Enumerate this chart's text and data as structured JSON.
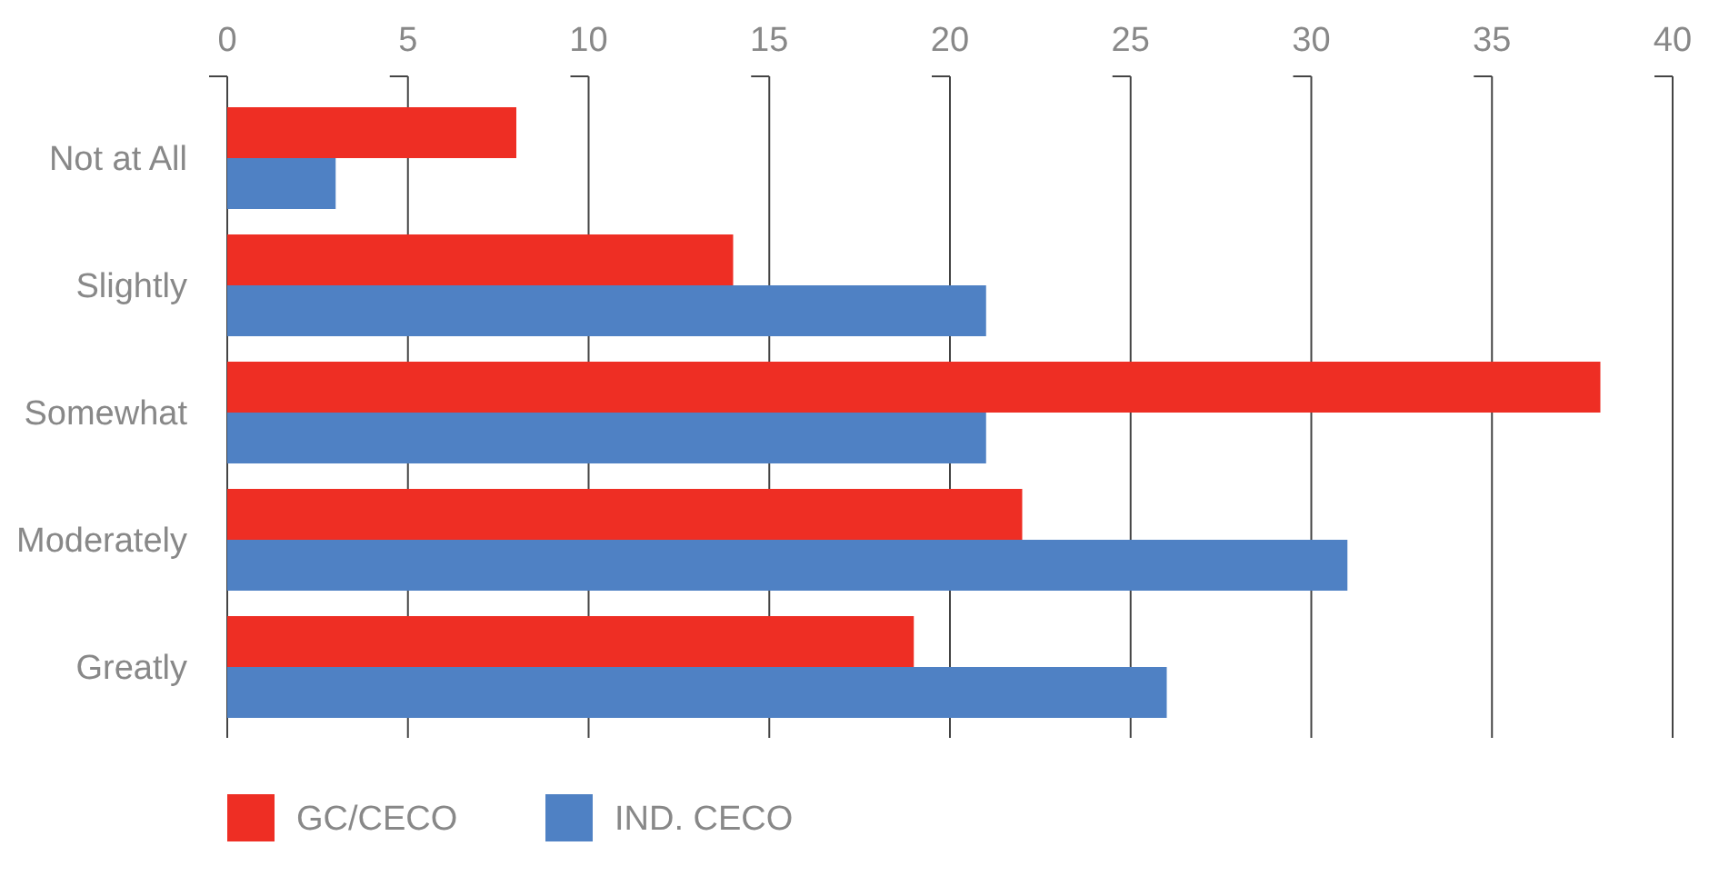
{
  "chart_data": {
    "type": "bar",
    "orientation": "horizontal",
    "categories": [
      "Not at All",
      "Slightly",
      "Somewhat",
      "Moderately",
      "Greatly"
    ],
    "series": [
      {
        "name": "GC/CECO",
        "color": "#ee2e24",
        "values": [
          8,
          14,
          38,
          22,
          19
        ]
      },
      {
        "name": "IND. CECO",
        "color": "#4f81c4",
        "values": [
          3,
          21,
          21,
          31,
          26
        ]
      }
    ],
    "xlim": [
      0,
      40
    ],
    "xticks": [
      0,
      5,
      10,
      15,
      20,
      25,
      30,
      35,
      40
    ],
    "grid": "x",
    "legend": "bottom left"
  }
}
